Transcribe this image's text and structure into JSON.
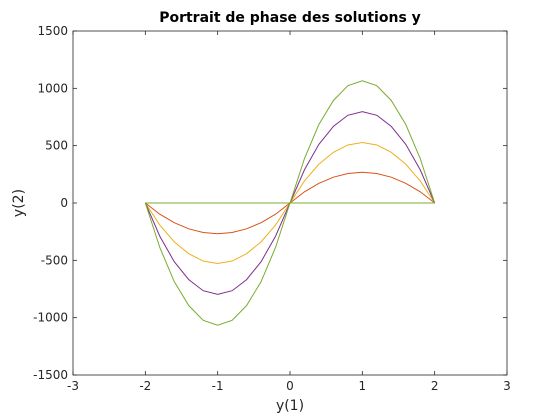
{
  "chart_data": {
    "type": "line",
    "title": "Portrait de phase des solutions y",
    "xlabel": "y(1)",
    "ylabel": "y(2)",
    "xlim": [
      -3,
      3
    ],
    "ylim": [
      -1500,
      1500
    ],
    "xticks": [
      -3,
      -2,
      -1,
      0,
      1,
      2,
      3
    ],
    "yticks": [
      -1500,
      -1000,
      -500,
      0,
      500,
      1000,
      1500
    ],
    "xtick_labels": [
      "-3",
      "-2",
      "-1",
      "0",
      "1",
      "2",
      "3"
    ],
    "ytick_labels": [
      "-1500",
      "-1000",
      "-500",
      "0",
      "500",
      "1000",
      "1500"
    ],
    "grid": false,
    "box": true,
    "series": [
      {
        "color": "#0072bd",
        "x": [
          -2,
          2
        ],
        "y": [
          0,
          0
        ]
      },
      {
        "color": "#d95319",
        "x": [
          -2,
          -1.8,
          -1.6,
          -1.4,
          -1.2,
          -1,
          -0.8,
          -0.6,
          -0.4,
          -0.2,
          0,
          0.2,
          0.4,
          0.6,
          0.8,
          1,
          1.2,
          1.4,
          1.6,
          1.8,
          2
        ],
        "y": [
          0,
          -98,
          -172,
          -225,
          -257,
          -268,
          -257,
          -225,
          -172,
          -98,
          0,
          0,
          0,
          0,
          0,
          0,
          0,
          0,
          0,
          0,
          0
        ]
      },
      {
        "color": "#d95319",
        "x": [
          -2,
          -1.8,
          -1.6,
          -1.4,
          -1.2,
          -1,
          -0.8,
          -0.6,
          -0.4,
          -0.2,
          0,
          0.2,
          0.4,
          0.6,
          0.8,
          1,
          1.2,
          1.4,
          1.6,
          1.8,
          2
        ],
        "y": [
          0,
          0,
          0,
          0,
          0,
          0,
          0,
          0,
          0,
          0,
          0,
          98,
          172,
          225,
          257,
          268,
          257,
          225,
          172,
          98,
          0
        ]
      },
      {
        "color": "#edb120",
        "x": [
          -2,
          -1.8,
          -1.6,
          -1.4,
          -1.2,
          -1,
          -0.8,
          -0.6,
          -0.4,
          -0.2,
          0,
          0.2,
          0.4,
          0.6,
          0.8,
          1,
          1.2,
          1.4,
          1.6,
          1.8,
          2
        ],
        "y": [
          0,
          -192,
          -339,
          -442,
          -506,
          -528,
          -506,
          -442,
          -339,
          -192,
          0,
          0,
          0,
          0,
          0,
          0,
          0,
          0,
          0,
          0,
          0
        ]
      },
      {
        "color": "#edb120",
        "x": [
          -2,
          -1.8,
          -1.6,
          -1.4,
          -1.2,
          -1,
          -0.8,
          -0.6,
          -0.4,
          -0.2,
          0,
          0.2,
          0.4,
          0.6,
          0.8,
          1,
          1.2,
          1.4,
          1.6,
          1.8,
          2
        ],
        "y": [
          0,
          0,
          0,
          0,
          0,
          0,
          0,
          0,
          0,
          0,
          0,
          192,
          339,
          442,
          506,
          528,
          506,
          442,
          339,
          192,
          0
        ]
      },
      {
        "color": "#7e2f8e",
        "x": [
          -2,
          -1.8,
          -1.6,
          -1.4,
          -1.2,
          -1,
          -0.8,
          -0.6,
          -0.4,
          -0.2,
          0,
          0.2,
          0.4,
          0.6,
          0.8,
          1,
          1.2,
          1.4,
          1.6,
          1.8,
          2
        ],
        "y": [
          0,
          -290,
          -512,
          -668,
          -765,
          -797,
          -765,
          -668,
          -512,
          -290,
          0,
          0,
          0,
          0,
          0,
          0,
          0,
          0,
          0,
          0,
          0
        ]
      },
      {
        "color": "#7e2f8e",
        "x": [
          -2,
          -1.8,
          -1.6,
          -1.4,
          -1.2,
          -1,
          -0.8,
          -0.6,
          -0.4,
          -0.2,
          0,
          0.2,
          0.4,
          0.6,
          0.8,
          1,
          1.2,
          1.4,
          1.6,
          1.8,
          2
        ],
        "y": [
          0,
          0,
          0,
          0,
          0,
          0,
          0,
          0,
          0,
          0,
          0,
          290,
          512,
          668,
          765,
          797,
          765,
          668,
          512,
          290,
          0
        ]
      },
      {
        "color": "#77ac30",
        "x": [
          -2,
          -1.8,
          -1.6,
          -1.4,
          -1.2,
          -1,
          -0.8,
          -0.6,
          -0.4,
          -0.2,
          0,
          0.2,
          0.4,
          0.6,
          0.8,
          1,
          1.2,
          1.4,
          1.6,
          1.8,
          2
        ],
        "y": [
          0,
          -388,
          -686,
          -894,
          -1023,
          -1066,
          -1023,
          -894,
          -686,
          -388,
          0,
          0,
          0,
          0,
          0,
          0,
          0,
          0,
          0,
          0,
          0
        ]
      },
      {
        "color": "#77ac30",
        "x": [
          -2,
          -1.8,
          -1.6,
          -1.4,
          -1.2,
          -1,
          -0.8,
          -0.6,
          -0.4,
          -0.2,
          0,
          0.2,
          0.4,
          0.6,
          0.8,
          1,
          1.2,
          1.4,
          1.6,
          1.8,
          2
        ],
        "y": [
          0,
          0,
          0,
          0,
          0,
          0,
          0,
          0,
          0,
          0,
          0,
          388,
          686,
          894,
          1023,
          1066,
          1023,
          894,
          686,
          388,
          0
        ]
      }
    ]
  }
}
